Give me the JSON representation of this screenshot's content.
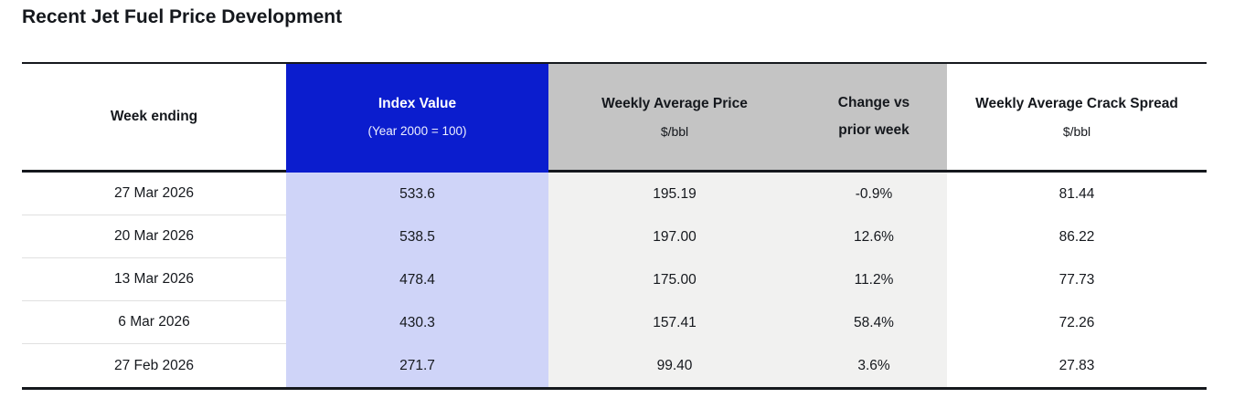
{
  "title": "Recent Jet Fuel Price Development",
  "colors": {
    "header_blue": "#0b1dce",
    "header_subtext_on_blue": "#eef0ff",
    "index_body_lavender": "#cfd4f8",
    "header_gray": "#c4c4c4",
    "body_light_gray": "#f1f1f0",
    "rule_black": "#15181d",
    "row_divider": "#e0e0e0",
    "text": "#15181d"
  },
  "table": {
    "headers": [
      {
        "line1": "Week ending",
        "line2": ""
      },
      {
        "line1": "Index Value",
        "line2": "(Year 2000 = 100)"
      },
      {
        "line1": "Weekly Average Price",
        "line2": "$/bbl"
      },
      {
        "line1": "Change vs",
        "line2": "prior week"
      },
      {
        "line1": "Weekly Average Crack Spread",
        "line2": "$/bbl"
      }
    ],
    "rows": [
      [
        "27 Mar 2026",
        "533.6",
        "195.19",
        "-0.9%",
        "81.44"
      ],
      [
        "20 Mar 2026",
        "538.5",
        "197.00",
        "12.6%",
        "86.22"
      ],
      [
        "13 Mar 2026",
        "478.4",
        "175.00",
        "11.2%",
        "77.73"
      ],
      [
        "6 Mar 2026",
        "430.3",
        "157.41",
        "58.4%",
        "72.26"
      ],
      [
        "27 Feb 2026",
        "271.7",
        "99.40",
        "3.6%",
        "27.83"
      ]
    ]
  },
  "chart_data": {
    "type": "table",
    "title": "Recent Jet Fuel Price Development",
    "columns": [
      "Week ending",
      "Index Value (Year 2000 = 100)",
      "Weekly Average Price $/bbl",
      "Change vs prior week",
      "Weekly Average Crack Spread $/bbl"
    ],
    "rows": [
      [
        "27 Mar 2026",
        533.6,
        195.19,
        "-0.9%",
        81.44
      ],
      [
        "20 Mar 2026",
        538.5,
        197.0,
        "12.6%",
        86.22
      ],
      [
        "13 Mar 2026",
        478.4,
        175.0,
        "11.2%",
        77.73
      ],
      [
        "6 Mar 2026",
        430.3,
        157.41,
        "58.4%",
        72.26
      ],
      [
        "27 Feb 2026",
        271.7,
        99.4,
        "3.6%",
        27.83
      ]
    ]
  }
}
